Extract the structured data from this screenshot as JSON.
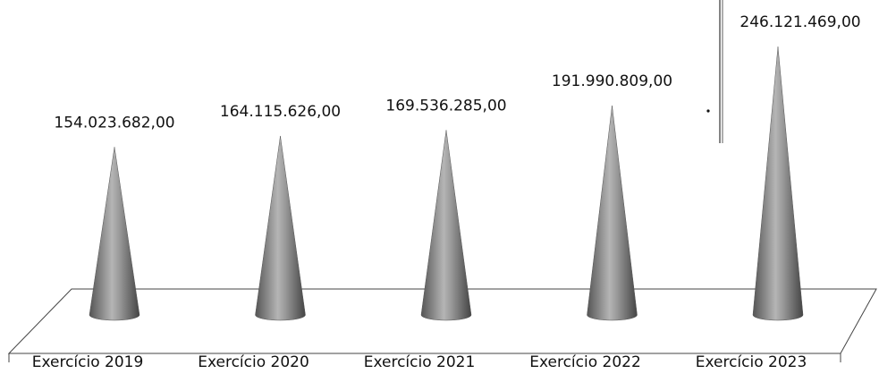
{
  "chart_data": {
    "type": "cone",
    "categories": [
      "Exercício 2019",
      "Exercício 2020",
      "Exercício 2021",
      "Exercício 2022",
      "Exercício 2023"
    ],
    "values": [
      154023682,
      164115626,
      169536285,
      191990809,
      246121469
    ],
    "value_labels": [
      "154.023.682,00",
      "164.115.626,00",
      "169.536.285,00",
      "191.990.809,00",
      "246.121.469,00"
    ],
    "color": "#8a8a8a"
  }
}
